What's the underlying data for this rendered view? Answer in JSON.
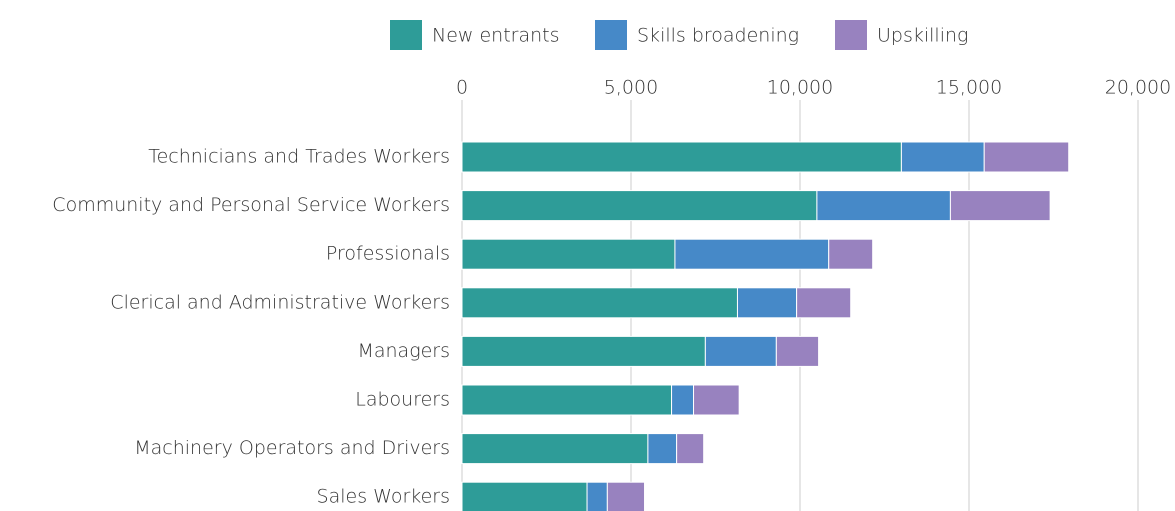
{
  "chart_data": {
    "type": "stacked-bar-horizontal",
    "categories": [
      "Technicians and Trades Workers",
      "Community and Personal Service Workers",
      "Professionals",
      "Clerical and Administrative Workers",
      "Managers",
      "Labourers",
      "Machinery Operators and Drivers",
      "Sales Workers"
    ],
    "series": [
      {
        "name": "New entrants",
        "color": "#2e9c98",
        "values": [
          13000,
          10500,
          6300,
          8150,
          7200,
          6200,
          5500,
          3700
        ]
      },
      {
        "name": "Skills broadening",
        "color": "#4689c8",
        "values": [
          2450,
          3950,
          4550,
          1750,
          2100,
          650,
          850,
          600
        ]
      },
      {
        "name": "Upskilling",
        "color": "#9882bf",
        "values": [
          2500,
          2950,
          1300,
          1600,
          1250,
          1350,
          800,
          1100
        ]
      }
    ],
    "xlim": [
      0,
      20000
    ],
    "xticks": [
      0,
      {
        "value": 5000,
        "label": "5,000"
      },
      {
        "value": 10000,
        "label": "10,000"
      },
      {
        "value": 15000,
        "label": "15,000"
      },
      {
        "value": 20000,
        "label": "20,000"
      }
    ],
    "grid": true,
    "legend": "top"
  }
}
